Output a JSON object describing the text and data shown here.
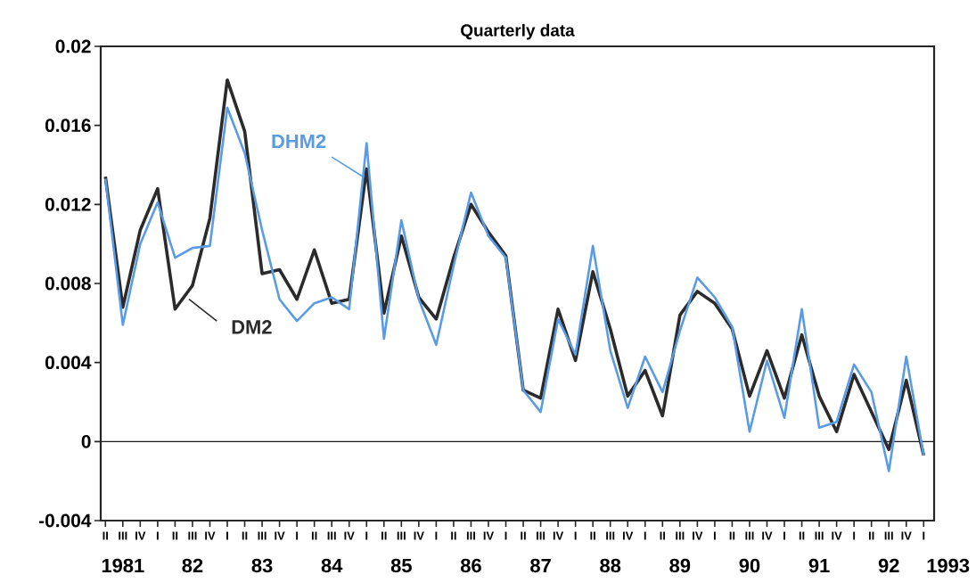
{
  "chart_data": {
    "type": "line",
    "title": "Quarterly data",
    "categories": [
      "II",
      "III",
      "IV",
      "I",
      "II",
      "III",
      "IV",
      "I",
      "II",
      "III",
      "IV",
      "I",
      "II",
      "III",
      "IV",
      "I",
      "II",
      "III",
      "IV",
      "I",
      "II",
      "III",
      "IV",
      "I",
      "II",
      "III",
      "IV",
      "I",
      "II",
      "III",
      "IV",
      "I",
      "II",
      "III",
      "IV",
      "I",
      "II",
      "III",
      "IV",
      "I",
      "II",
      "III",
      "IV",
      "I",
      "II",
      "III",
      "IV",
      "I"
    ],
    "series": [
      {
        "name": "DM2",
        "color": "#2b2b2b",
        "values": [
          0.0134,
          0.0068,
          0.0107,
          0.0128,
          0.0067,
          0.0079,
          0.0113,
          0.0183,
          0.0157,
          0.0085,
          0.0087,
          0.0072,
          0.0097,
          0.007,
          0.0072,
          0.0138,
          0.0065,
          0.0104,
          0.0073,
          0.0062,
          0.0093,
          0.012,
          0.0106,
          0.0094,
          0.0026,
          0.0022,
          0.0067,
          0.0041,
          0.0086,
          0.0057,
          0.0023,
          0.0036,
          0.0013,
          0.0064,
          0.0076,
          0.007,
          0.0057,
          0.0023,
          0.0046,
          0.0022,
          0.0054,
          0.0023,
          0.0005,
          0.0034,
          0.0015,
          -0.0004,
          0.0031,
          -0.0007
        ]
      },
      {
        "name": "DHM2",
        "color": "#5a9be6",
        "values": [
          0.0133,
          0.0059,
          0.01,
          0.0121,
          0.0093,
          0.0098,
          0.0099,
          0.0169,
          0.0146,
          0.0107,
          0.0072,
          0.0061,
          0.007,
          0.0073,
          0.0067,
          0.0151,
          0.0052,
          0.0112,
          0.0072,
          0.0049,
          0.0089,
          0.0126,
          0.0104,
          0.0093,
          0.0026,
          0.0015,
          0.0062,
          0.0044,
          0.0099,
          0.0046,
          0.0017,
          0.0043,
          0.0025,
          0.0056,
          0.0083,
          0.0073,
          0.0058,
          0.0005,
          0.0041,
          0.0012,
          0.0067,
          0.0007,
          0.001,
          0.0039,
          0.0025,
          -0.0015,
          0.0043,
          -0.0007
        ]
      }
    ],
    "ylim": [
      -0.004,
      0.02
    ],
    "yticks": [
      -0.004,
      0,
      0.004,
      0.008,
      0.012,
      0.016,
      0.02
    ],
    "ref_lines": [
      {
        "axis": "y",
        "value": 0,
        "color": "#1a1a1a"
      }
    ],
    "annotations": [
      "1981",
      "82",
      "83",
      "84",
      "85",
      "86",
      "87",
      "88",
      "89",
      "90",
      "91",
      "92",
      "1993"
    ],
    "grid": false
  }
}
